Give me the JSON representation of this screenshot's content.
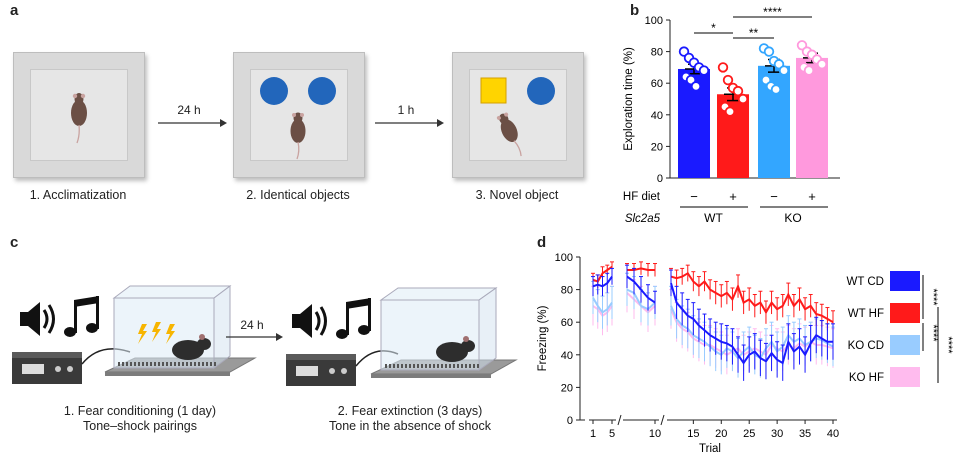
{
  "panels": {
    "a": {
      "label": "a",
      "steps": [
        {
          "caption": "1. Acclimatization"
        },
        {
          "caption": "2. Identical objects"
        },
        {
          "caption": "3. Novel object"
        }
      ],
      "arrows": [
        "24 h",
        "1 h"
      ]
    },
    "b": {
      "label": "b",
      "row_labels": {
        "diet": "HF diet",
        "gene": "Slc2a5"
      },
      "diet_signs": [
        "−",
        "+",
        "−",
        "+"
      ],
      "genotypes": [
        "WT",
        "KO"
      ],
      "significance": [
        "*",
        "**",
        "****"
      ],
      "colors": {
        "wt_cd": "#1a1aff",
        "wt_hf": "#ff1a1a",
        "ko_cd": "#33a6ff",
        "ko_hf": "#ff99dd"
      }
    },
    "c": {
      "label": "c",
      "arrow": "24 h",
      "captions": [
        {
          "line1": "1. Fear conditioning (1 day)",
          "line2": "Tone–shock pairings"
        },
        {
          "line1": "2. Fear extinction (3 days)",
          "line2": "Tone in the absence of shock"
        }
      ]
    },
    "d": {
      "label": "d",
      "legend": [
        {
          "name": "WT CD",
          "color": "#1a1aff"
        },
        {
          "name": "WT HF",
          "color": "#ff1a1a"
        },
        {
          "name": "KO CD",
          "color": "#99ccff"
        },
        {
          "name": "KO HF",
          "color": "#ffbbee"
        }
      ],
      "significance": [
        "****",
        "****",
        "****"
      ]
    }
  },
  "chart_data": [
    {
      "type": "bar",
      "panel": "b",
      "ylabel": "Exploration time (%)",
      "ylim": [
        0,
        100
      ],
      "yticks": [
        0,
        20,
        40,
        60,
        80,
        100
      ],
      "categories": [
        "WT CD",
        "WT HF",
        "KO CD",
        "KO HF"
      ],
      "values": [
        69,
        53,
        71,
        76
      ],
      "errors": [
        3,
        4,
        4,
        3
      ],
      "points": [
        [
          80,
          76,
          73,
          70,
          68,
          64,
          62,
          58
        ],
        [
          70,
          62,
          57,
          55,
          50,
          45,
          42
        ],
        [
          82,
          80,
          74,
          72,
          68,
          62,
          58,
          56
        ],
        [
          84,
          80,
          78,
          75,
          72,
          70,
          68
        ]
      ]
    },
    {
      "type": "line",
      "panel": "d",
      "ylabel": "Freezing (%)",
      "xlabel": "Trial",
      "ylim": [
        0,
        100
      ],
      "yticks": [
        0,
        20,
        40,
        60,
        80,
        100
      ],
      "xticks": [
        1,
        5,
        10,
        15,
        20,
        25,
        30,
        35,
        40
      ],
      "segments": [
        [
          1,
          5
        ],
        [
          6,
          10
        ],
        [
          11,
          40
        ]
      ],
      "series": [
        {
          "name": "WT CD",
          "color": "#1a1aff",
          "values": [
            82,
            83,
            82,
            84,
            88,
            88,
            85,
            80,
            75,
            72,
            84,
            72,
            68,
            64,
            62,
            58,
            55,
            52,
            50,
            48,
            47,
            45,
            40,
            35,
            40,
            42,
            38,
            36,
            41,
            37,
            35,
            48,
            42,
            45,
            40,
            47,
            52,
            50,
            48,
            48
          ],
          "err": [
            6,
            6,
            6,
            6,
            5,
            7,
            8,
            8,
            8,
            7,
            8,
            10,
            10,
            10,
            10,
            10,
            10,
            10,
            10,
            11,
            11,
            11,
            11,
            11,
            11,
            11,
            11,
            11,
            11,
            11,
            11,
            11,
            11,
            11,
            11,
            11,
            11,
            11,
            11,
            11
          ]
        },
        {
          "name": "WT HF",
          "color": "#ff1a1a",
          "values": [
            86,
            85,
            90,
            92,
            94,
            92,
            92,
            93,
            92,
            92,
            88,
            87,
            88,
            90,
            85,
            82,
            85,
            80,
            78,
            76,
            78,
            74,
            82,
            72,
            74,
            70,
            72,
            66,
            72,
            68,
            70,
            77,
            70,
            74,
            68,
            70,
            65,
            64,
            62,
            60
          ],
          "err": [
            4,
            4,
            4,
            3,
            3,
            4,
            4,
            4,
            4,
            4,
            5,
            5,
            5,
            5,
            6,
            6,
            6,
            6,
            7,
            7,
            7,
            7,
            7,
            7,
            7,
            7,
            7,
            7,
            7,
            7,
            7,
            7,
            7,
            7,
            7,
            7,
            7,
            7,
            7,
            7
          ]
        },
        {
          "name": "KO CD",
          "color": "#99ccff",
          "values": [
            75,
            70,
            66,
            68,
            72,
            80,
            78,
            70,
            68,
            72,
            70,
            62,
            58,
            56,
            52,
            50,
            48,
            45,
            42,
            40,
            44,
            42,
            38,
            42,
            45,
            40,
            38,
            44,
            48,
            42,
            45,
            52,
            48,
            50,
            46,
            48,
            50,
            49,
            47,
            45
          ],
          "err": [
            10,
            10,
            10,
            10,
            10,
            10,
            10,
            10,
            10,
            10,
            12,
            12,
            12,
            12,
            12,
            12,
            12,
            12,
            12,
            12,
            12,
            12,
            12,
            12,
            12,
            12,
            12,
            12,
            12,
            12,
            12,
            12,
            12,
            12,
            12,
            12,
            12,
            12,
            12,
            12
          ]
        },
        {
          "name": "KO HF",
          "color": "#ffbbee",
          "values": [
            70,
            68,
            64,
            66,
            70,
            78,
            74,
            70,
            66,
            70,
            68,
            60,
            56,
            54,
            50,
            48,
            46,
            46,
            44,
            42,
            40,
            42,
            44,
            40,
            42,
            44,
            42,
            40,
            46,
            44,
            42,
            46,
            44,
            47,
            45,
            48,
            46,
            46,
            45,
            44
          ],
          "err": [
            12,
            12,
            12,
            12,
            12,
            12,
            12,
            12,
            12,
            12,
            12,
            12,
            12,
            12,
            12,
            12,
            12,
            12,
            12,
            12,
            12,
            12,
            12,
            12,
            12,
            12,
            12,
            12,
            12,
            12,
            12,
            12,
            12,
            12,
            12,
            12,
            12,
            12,
            12,
            12
          ]
        }
      ]
    }
  ]
}
